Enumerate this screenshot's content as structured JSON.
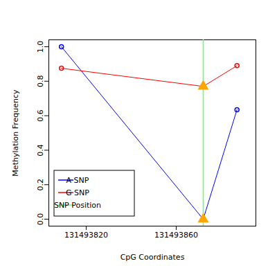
{
  "chart_data": {
    "type": "line",
    "x_label": "CpG Coordinates",
    "y_label": "Methylation Frequency",
    "x": [
      131493809,
      131493872,
      131493887
    ],
    "xlim": [
      131493803.4,
      131493895.4
    ],
    "xticks": [
      131493820,
      131493860
    ],
    "ylim": [
      -0.04,
      1.04
    ],
    "yticks": [
      {
        "value": 0,
        "label": "0.0"
      },
      {
        "value": 0.2,
        "label": "0.2"
      },
      {
        "value": 0.4,
        "label": "0.4"
      },
      {
        "value": 0.6,
        "label": "0.6"
      },
      {
        "value": 0.8,
        "label": "0.8"
      },
      {
        "value": 1,
        "label": "1.0"
      }
    ],
    "series": [
      {
        "name": "A SNP",
        "color": "#0000ff",
        "marker": "circle",
        "values": [
          1.0,
          0.0,
          0.635
        ]
      },
      {
        "name": "G SNP",
        "color": "#ff0000",
        "marker": "circle",
        "values": [
          0.875,
          0.77,
          0.89
        ]
      }
    ],
    "snp_position": {
      "name": "SNP Position",
      "x": 131493872,
      "color": "#66ff66"
    },
    "legend": "bottom-left"
  }
}
